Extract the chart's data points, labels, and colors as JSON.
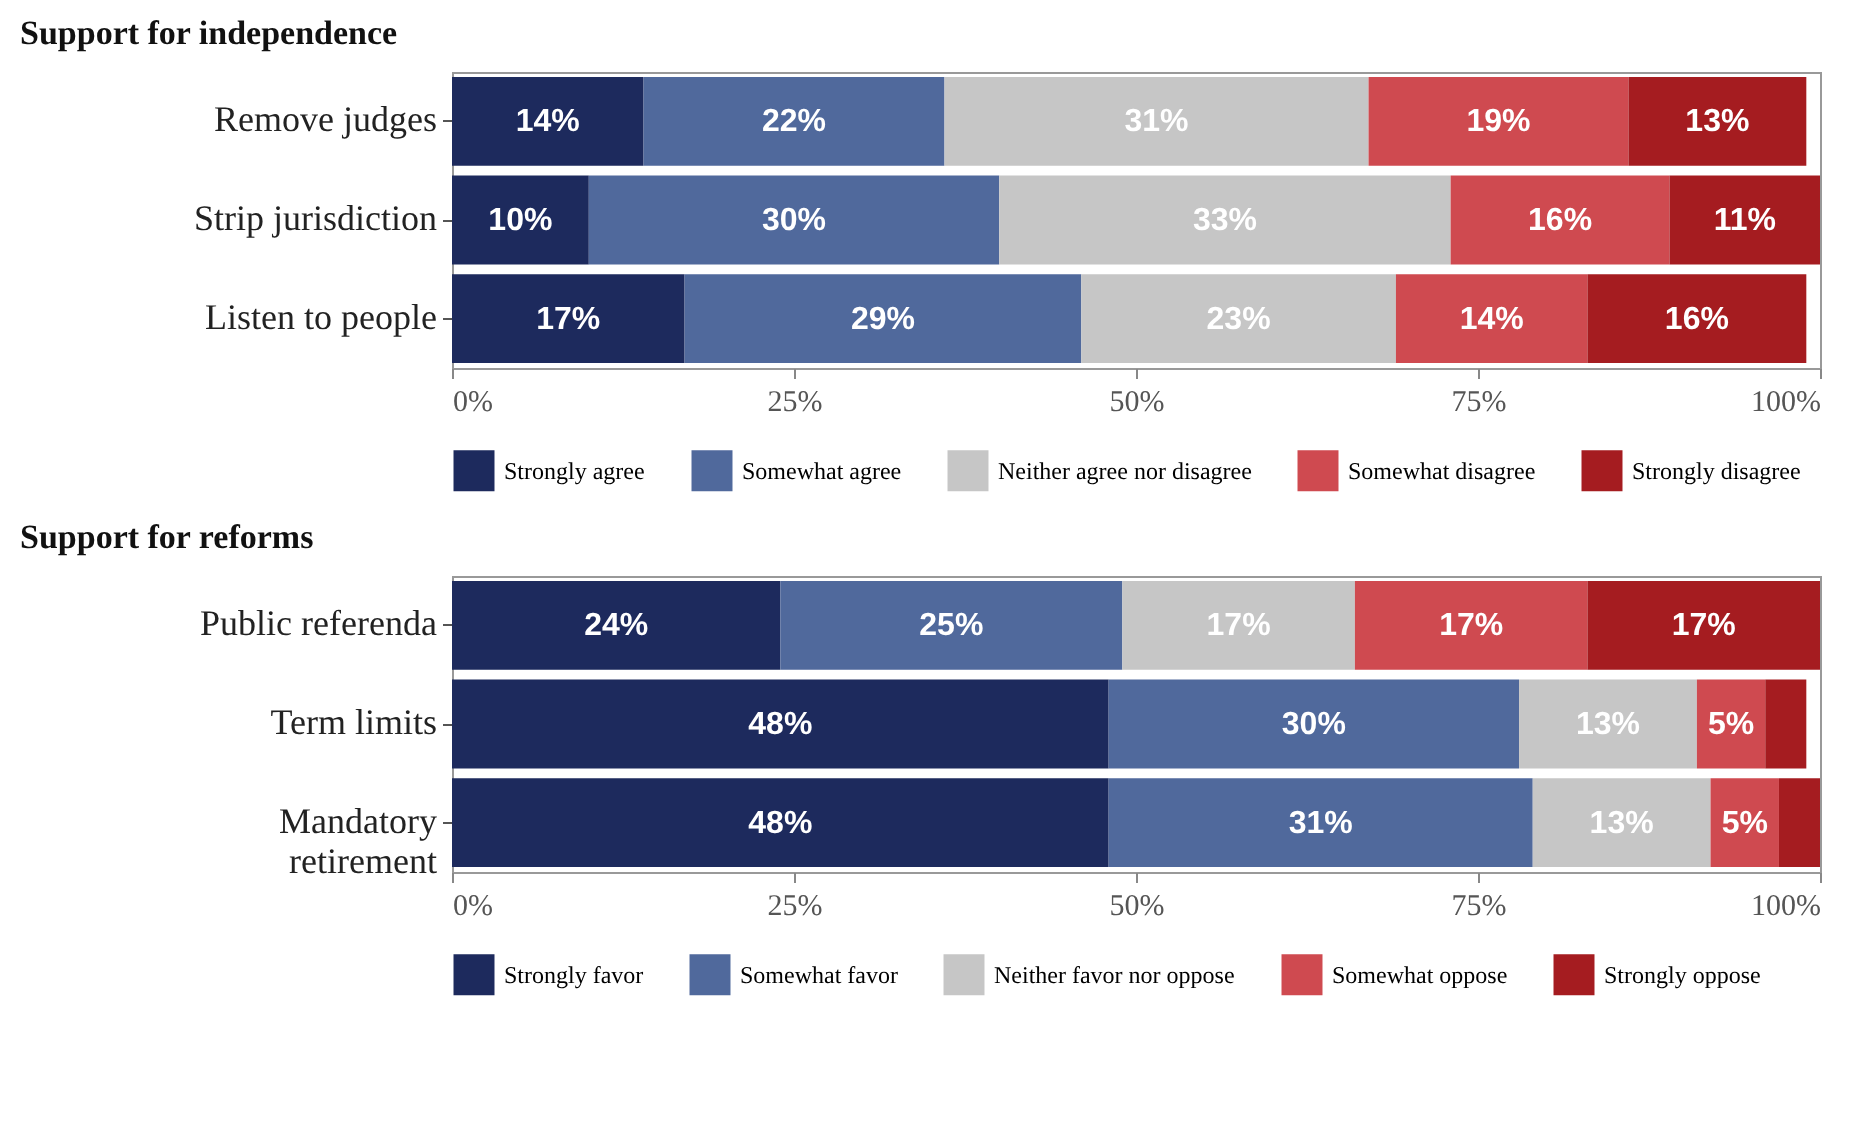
{
  "chart_data": [
    {
      "type": "bar",
      "title": "Support for independence",
      "orientation": "horizontal",
      "stacked": true,
      "categories": [
        "Remove judges",
        "Strip jurisdiction",
        "Listen to people"
      ],
      "series": [
        {
          "name": "Strongly agree",
          "color": "#1d2a5d",
          "values": [
            14,
            10,
            17
          ],
          "value_labels": [
            "14%",
            "10%",
            "17%"
          ]
        },
        {
          "name": "Somewhat agree",
          "color": "#50699c",
          "values": [
            22,
            30,
            29
          ],
          "value_labels": [
            "22%",
            "30%",
            "29%"
          ]
        },
        {
          "name": "Neither agree nor disagree",
          "color": "#c6c6c6",
          "values": [
            31,
            33,
            23
          ],
          "value_labels": [
            "31%",
            "33%",
            "23%"
          ]
        },
        {
          "name": "Somewhat disagree",
          "color": "#cf4a50",
          "values": [
            19,
            16,
            14
          ],
          "value_labels": [
            "19%",
            "16%",
            "14%"
          ]
        },
        {
          "name": "Strongly disagree",
          "color": "#a51c20",
          "values": [
            13,
            11,
            16
          ],
          "value_labels": [
            "13%",
            "11%",
            "16%"
          ]
        }
      ],
      "xlim": [
        0,
        100
      ],
      "xticks": [
        {
          "value": 0,
          "label": "0%"
        },
        {
          "value": 25,
          "label": "25%"
        },
        {
          "value": 50,
          "label": "50%"
        },
        {
          "value": 75,
          "label": "75%"
        },
        {
          "value": 100,
          "label": "100%"
        }
      ],
      "legend": "bottom",
      "grid": false
    },
    {
      "type": "bar",
      "title": "Support for reforms",
      "orientation": "horizontal",
      "stacked": true,
      "categories": [
        "Public referenda",
        "Term limits",
        "Mandatory\nretirement"
      ],
      "series": [
        {
          "name": "Strongly favor",
          "color": "#1d2a5d",
          "values": [
            24,
            48,
            48
          ],
          "value_labels": [
            "24%",
            "48%",
            "48%"
          ]
        },
        {
          "name": "Somewhat favor",
          "color": "#50699c",
          "values": [
            25,
            30,
            31
          ],
          "value_labels": [
            "25%",
            "30%",
            "31%"
          ]
        },
        {
          "name": "Neither favor nor oppose",
          "color": "#c6c6c6",
          "values": [
            17,
            13,
            13
          ],
          "value_labels": [
            "17%",
            "13%",
            "13%"
          ]
        },
        {
          "name": "Somewhat oppose",
          "color": "#cf4a50",
          "values": [
            17,
            5,
            5
          ],
          "value_labels": [
            "17%",
            "5%",
            "5%"
          ]
        },
        {
          "name": "Strongly oppose",
          "color": "#a51c20",
          "values": [
            17,
            3,
            3
          ],
          "value_labels": [
            "17%",
            null,
            null
          ]
        }
      ],
      "xlim": [
        0,
        100
      ],
      "xticks": [
        {
          "value": 0,
          "label": "0%"
        },
        {
          "value": 25,
          "label": "25%"
        },
        {
          "value": 50,
          "label": "50%"
        },
        {
          "value": 75,
          "label": "75%"
        },
        {
          "value": 100,
          "label": "100%"
        }
      ],
      "legend": "bottom",
      "grid": false
    }
  ]
}
